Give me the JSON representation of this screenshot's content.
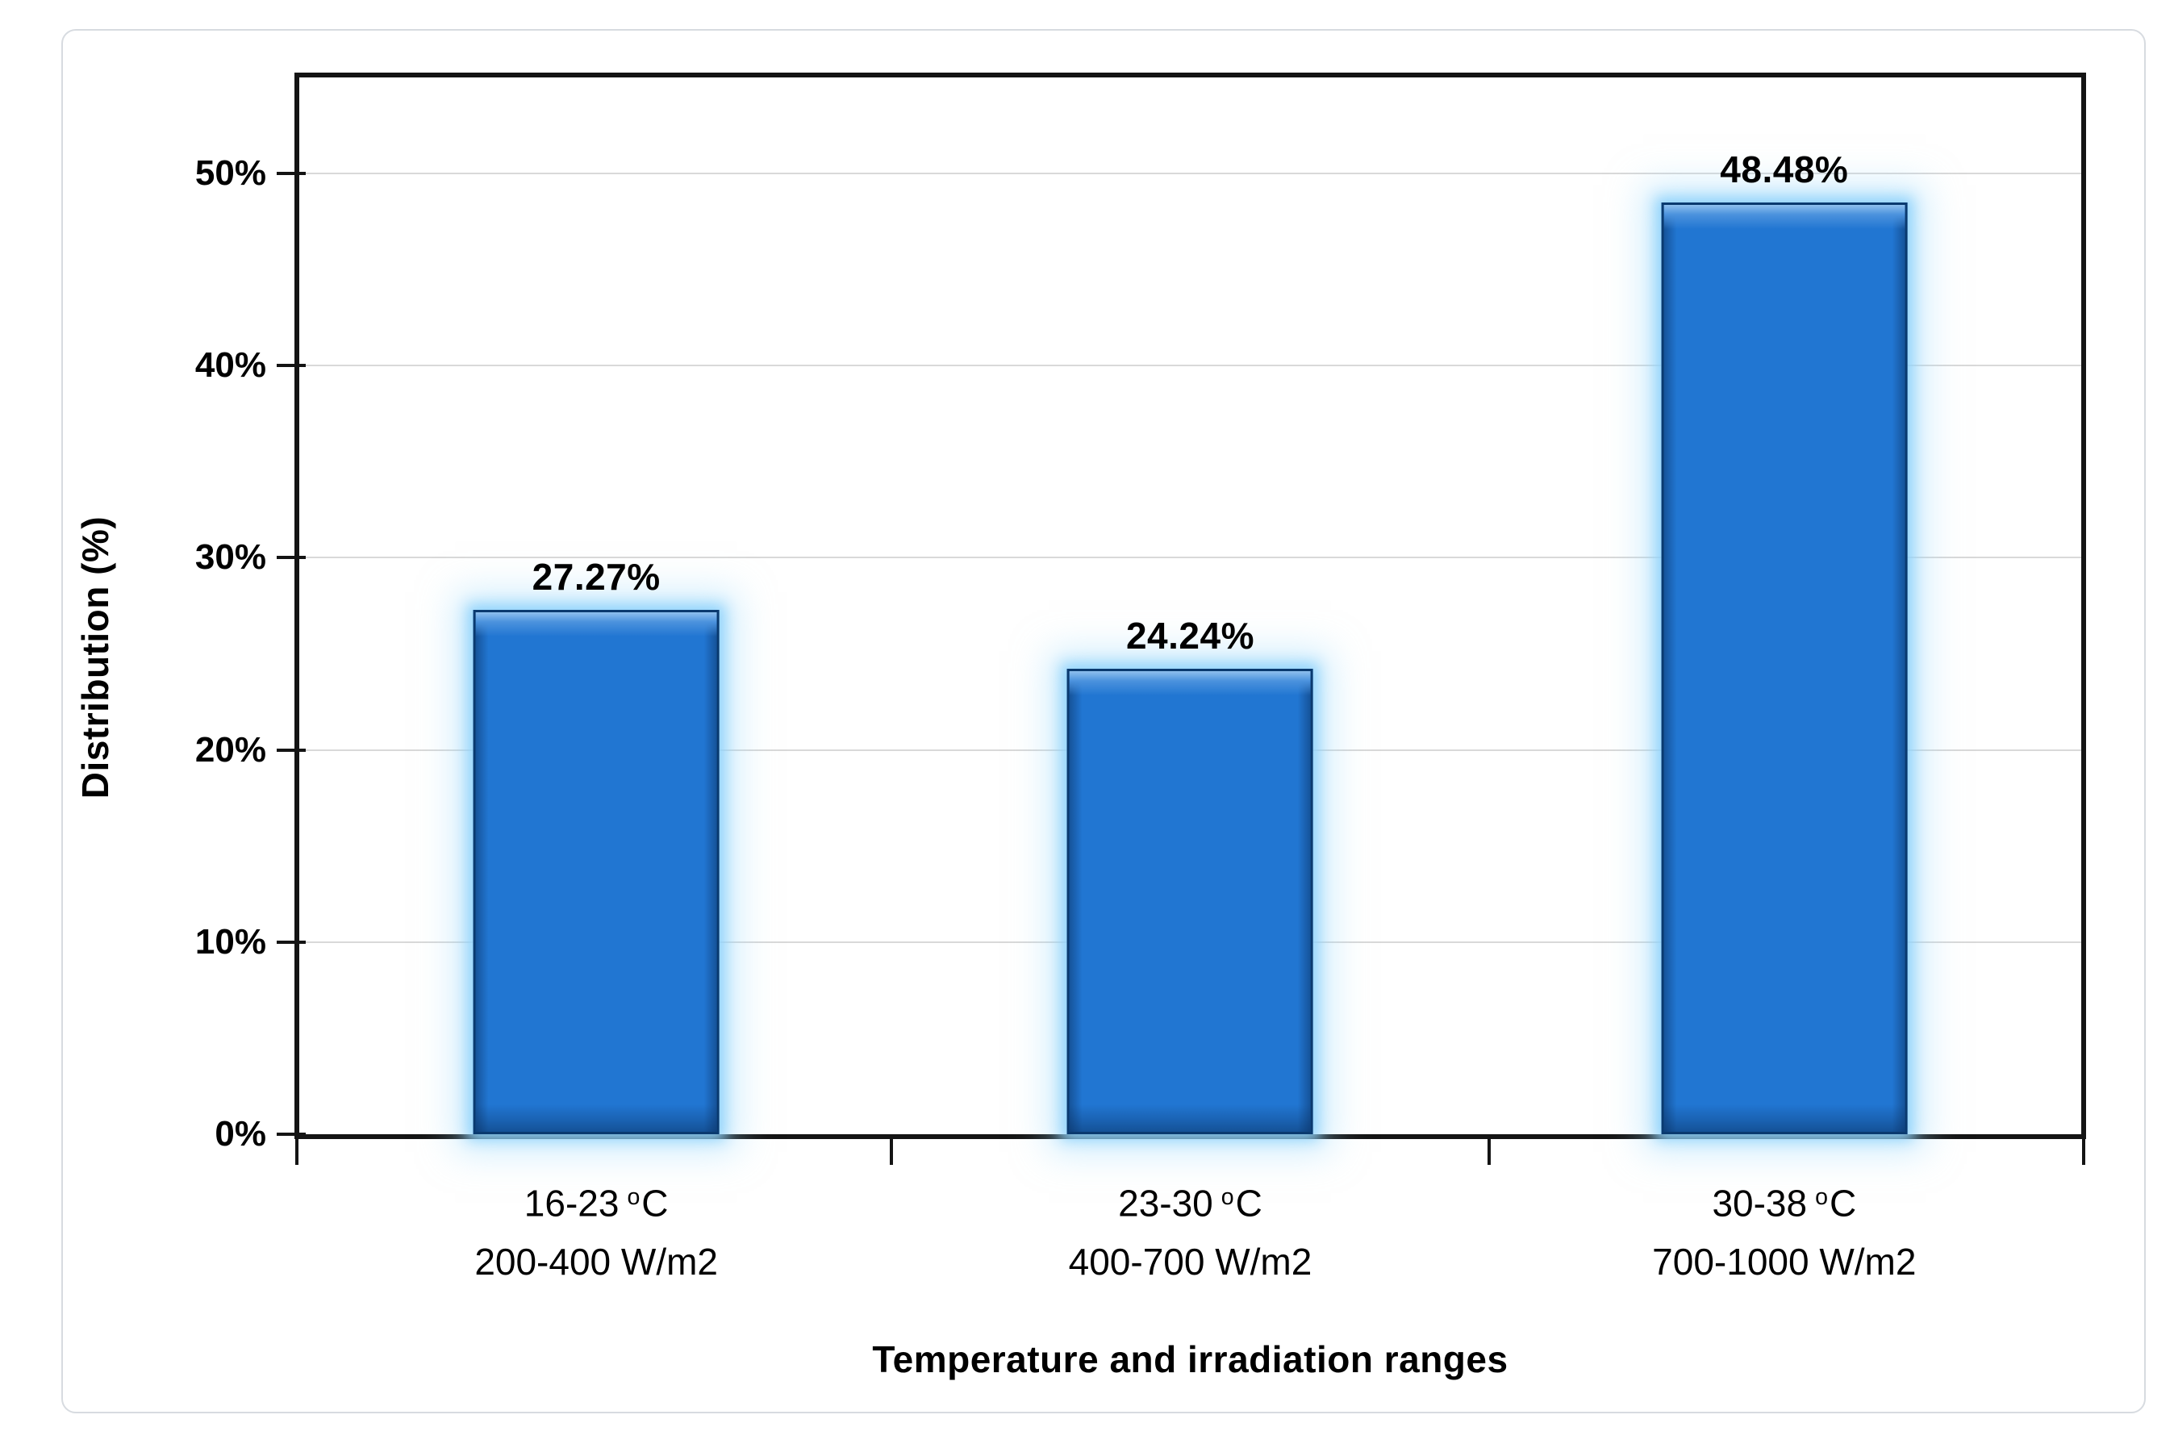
{
  "chart_data": {
    "type": "bar",
    "title": "",
    "xlabel": "Temperature and irradiation ranges",
    "ylabel": "Distribution (%)",
    "ylim": [
      0,
      55
    ],
    "grid": "horizontal",
    "legend": "none",
    "categories": [
      {
        "temp": "16-23",
        "sup": "o",
        "unit": "C",
        "irradiation": "200-400 W/m2"
      },
      {
        "temp": "23-30",
        "sup": "o",
        "unit": "C",
        "irradiation": "400-700 W/m2"
      },
      {
        "temp": "30-38",
        "sup": "o",
        "unit": "C",
        "irradiation": "700-1000 W/m2"
      }
    ],
    "values": [
      27.27,
      24.24,
      48.48
    ],
    "value_labels": [
      "27.27%",
      "24.24%",
      "48.48%"
    ],
    "yticks": [
      "0%",
      "10%",
      "20%",
      "30%",
      "40%",
      "50%"
    ],
    "ytick_values": [
      0,
      10,
      20,
      30,
      40,
      50
    ],
    "colors": {
      "bar_fill": "#2176d2",
      "bar_border": "#0a3a6f",
      "glow": "#8ed2fc",
      "gridline": "#d9d9d9",
      "axis": "#141414",
      "text": "#000000",
      "card_border": "#d7dbe0",
      "plot_bg": "#ffffff"
    }
  }
}
